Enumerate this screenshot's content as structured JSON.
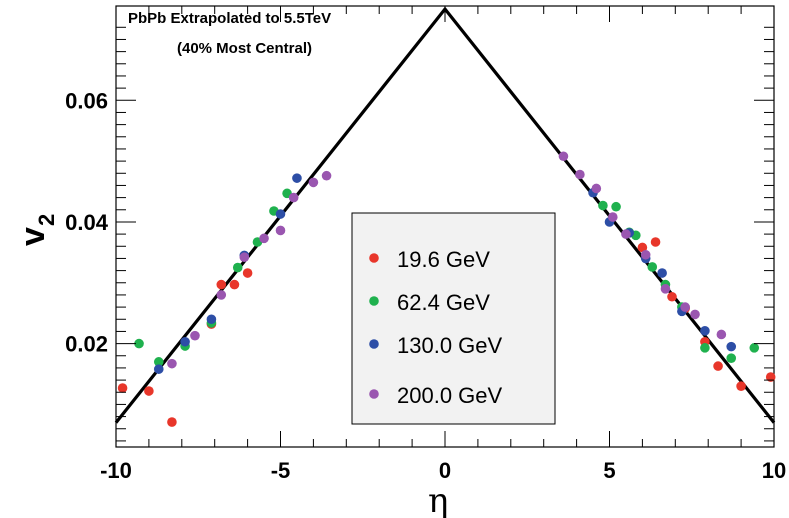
{
  "chart_data": {
    "type": "scatter",
    "title": "PbPb Extrapolated to 5.5TeV",
    "subtitle": "(40% Most Central)",
    "xlabel": "η",
    "ylabel": "v",
    "ylabel_subscript": "2",
    "xlim": [
      -10,
      10
    ],
    "ylim": [
      0.003,
      0.0755
    ],
    "x_ticks": [
      -10,
      -5,
      0,
      5,
      10
    ],
    "x_tick_labels": [
      "-10",
      "-5",
      "0",
      "5",
      "10"
    ],
    "y_ticks": [
      0.02,
      0.04,
      0.06
    ],
    "y_tick_labels": [
      "0.02",
      "0.04",
      "0.06"
    ],
    "grid": false,
    "legend_position": "center",
    "trend_line": {
      "x": [
        -10,
        0,
        10
      ],
      "y": [
        0.007,
        0.075,
        0.007
      ]
    },
    "series": [
      {
        "name": "19.6 GeV",
        "color": "#e8362a",
        "points": [
          [
            -9.8,
            0.0127
          ],
          [
            -9.0,
            0.0122
          ],
          [
            -8.3,
            0.0071
          ],
          [
            -7.1,
            0.0232
          ],
          [
            -6.8,
            0.0297
          ],
          [
            -6.4,
            0.0297
          ],
          [
            -6.0,
            0.0316
          ],
          [
            6.0,
            0.0358
          ],
          [
            6.4,
            0.0367
          ],
          [
            6.9,
            0.0277
          ],
          [
            7.3,
            0.0258
          ],
          [
            7.9,
            0.0203
          ],
          [
            8.3,
            0.0163
          ],
          [
            9.0,
            0.013
          ],
          [
            9.9,
            0.0145
          ]
        ]
      },
      {
        "name": "62.4 GeV",
        "color": "#1fb14e",
        "points": [
          [
            -9.3,
            0.02
          ],
          [
            -8.7,
            0.017
          ],
          [
            -7.9,
            0.0196
          ],
          [
            -7.1,
            0.0234
          ],
          [
            -6.3,
            0.0325
          ],
          [
            -5.7,
            0.0367
          ],
          [
            -5.2,
            0.0418
          ],
          [
            -4.8,
            0.0447
          ],
          [
            4.8,
            0.0427
          ],
          [
            5.2,
            0.0425
          ],
          [
            5.6,
            0.0383
          ],
          [
            5.8,
            0.0378
          ],
          [
            6.3,
            0.0326
          ],
          [
            6.7,
            0.0297
          ],
          [
            7.2,
            0.026
          ],
          [
            7.9,
            0.0193
          ],
          [
            8.7,
            0.0176
          ],
          [
            9.4,
            0.0193
          ]
        ]
      },
      {
        "name": "130.0 GeV",
        "color": "#2d4ea6",
        "points": [
          [
            -8.7,
            0.0158
          ],
          [
            -7.9,
            0.0203
          ],
          [
            -7.1,
            0.024
          ],
          [
            -6.1,
            0.0345
          ],
          [
            -5.0,
            0.0413
          ],
          [
            -4.5,
            0.0472
          ],
          [
            4.5,
            0.0448
          ],
          [
            5.0,
            0.04
          ],
          [
            5.6,
            0.0382
          ],
          [
            6.1,
            0.034
          ],
          [
            6.6,
            0.0316
          ],
          [
            7.2,
            0.0253
          ],
          [
            7.9,
            0.0221
          ],
          [
            8.7,
            0.0195
          ]
        ]
      },
      {
        "name": "200.0 GeV",
        "color": "#9a56b0",
        "points": [
          [
            -8.3,
            0.0167
          ],
          [
            -7.6,
            0.0213
          ],
          [
            -6.8,
            0.028
          ],
          [
            -6.1,
            0.0342
          ],
          [
            -5.5,
            0.0373
          ],
          [
            -5.0,
            0.0386
          ],
          [
            -4.6,
            0.044
          ],
          [
            -4.0,
            0.0465
          ],
          [
            -3.6,
            0.0476
          ],
          [
            3.6,
            0.0508
          ],
          [
            4.1,
            0.0478
          ],
          [
            4.6,
            0.0455
          ],
          [
            5.1,
            0.0408
          ],
          [
            5.5,
            0.038
          ],
          [
            6.1,
            0.0346
          ],
          [
            6.7,
            0.029
          ],
          [
            7.3,
            0.026
          ],
          [
            7.6,
            0.0248
          ],
          [
            8.4,
            0.0215
          ]
        ]
      }
    ]
  }
}
